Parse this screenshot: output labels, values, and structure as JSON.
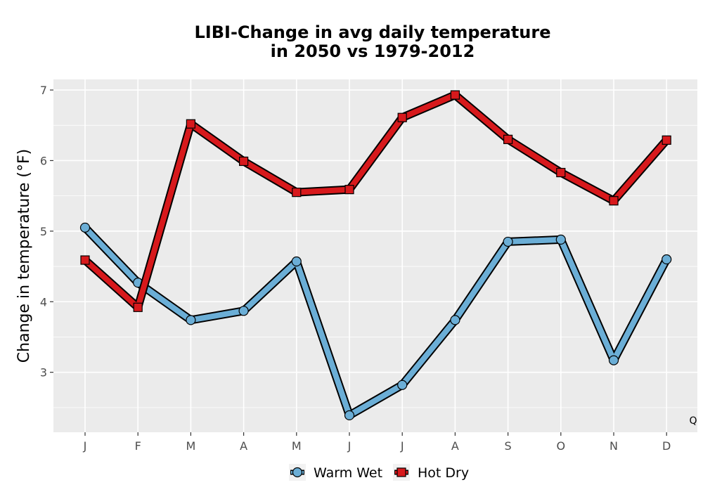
{
  "chart_data": {
    "type": "line",
    "title_lines": [
      "LIBI-Change in avg daily temperature",
      "in 2050 vs 1979-2012"
    ],
    "xlabel": "",
    "ylabel": "Change in temperature (°F)",
    "categories": [
      "J",
      "F",
      "M",
      "A",
      "M",
      "J",
      "J",
      "A",
      "S",
      "O",
      "N",
      "D"
    ],
    "yticks": [
      3,
      4,
      5,
      6,
      7
    ],
    "ylim": [
      2.15,
      7.15
    ],
    "grid": true,
    "legend_position": "bottom",
    "corner_label": "Q",
    "series": [
      {
        "name": "Warm Wet",
        "marker": "circle",
        "color": "#6baed6",
        "values": [
          5.05,
          4.27,
          3.74,
          3.87,
          4.57,
          2.39,
          2.82,
          3.74,
          4.85,
          4.88,
          3.17,
          4.6
        ]
      },
      {
        "name": "Hot Dry",
        "marker": "square",
        "color": "#d7191c",
        "values": [
          4.59,
          3.92,
          6.52,
          5.99,
          5.55,
          5.59,
          6.61,
          6.93,
          6.3,
          5.83,
          5.43,
          6.29
        ]
      }
    ],
    "panel_color": "#ebebeb",
    "grid_color": "#ffffff"
  }
}
